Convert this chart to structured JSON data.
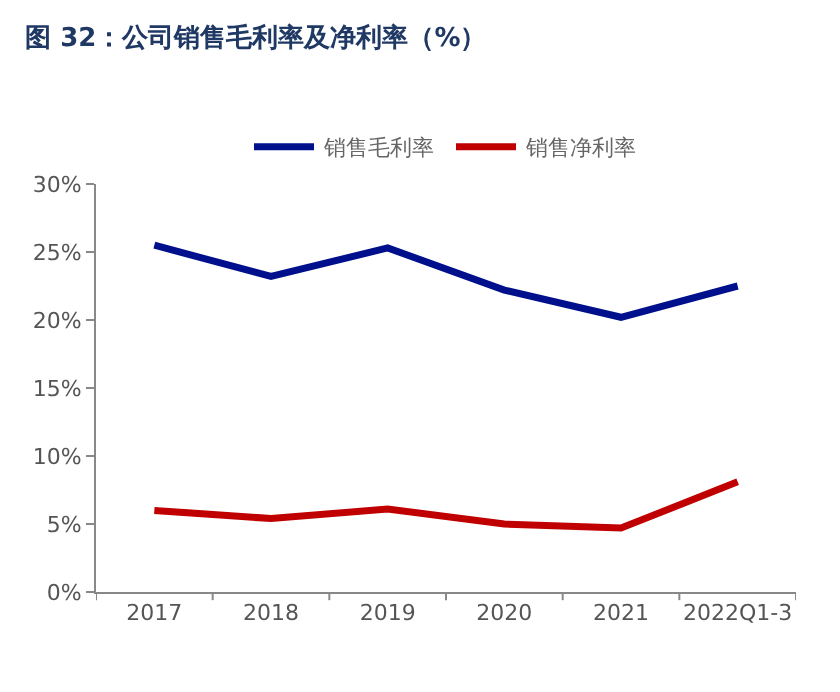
{
  "chart_data": {
    "type": "line",
    "title": "图 32：公司销售毛利率及净利率（%）",
    "categories": [
      "2017",
      "2018",
      "2019",
      "2020",
      "2021",
      "2022Q1-3"
    ],
    "series": [
      {
        "name": "销售毛利率",
        "color": "#000f8c",
        "values": [
          25.5,
          23.2,
          25.3,
          22.2,
          20.2,
          22.5
        ]
      },
      {
        "name": "销售净利率",
        "color": "#c00000",
        "values": [
          6.0,
          5.4,
          6.1,
          5.0,
          4.7,
          8.1
        ]
      }
    ],
    "ylim": [
      0,
      30
    ],
    "yticks": [
      {
        "value": 0,
        "label": "0%"
      },
      {
        "value": 5,
        "label": "5%"
      },
      {
        "value": 10,
        "label": "10%"
      },
      {
        "value": 15,
        "label": "15%"
      },
      {
        "value": 20,
        "label": "20%"
      },
      {
        "value": 25,
        "label": "25%"
      },
      {
        "value": 30,
        "label": "30%"
      }
    ],
    "legend": "top",
    "marker": "none",
    "line_style": "solid"
  }
}
